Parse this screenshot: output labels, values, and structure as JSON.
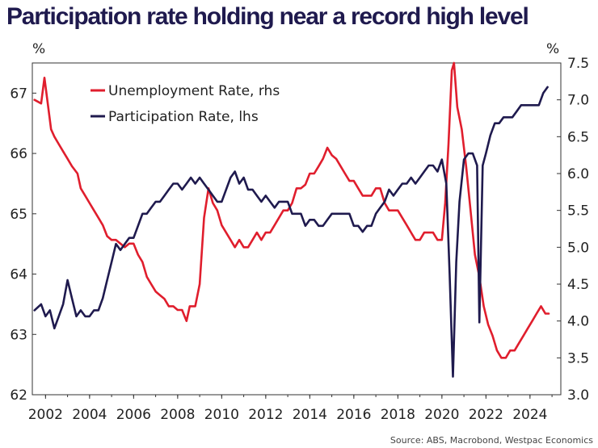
{
  "chart_data": {
    "type": "line",
    "title": "Participation rate holding near a record high level",
    "left_unit": "%",
    "right_unit": "%",
    "ylim_left": [
      62,
      67.5
    ],
    "ylim_right": [
      3.0,
      7.5
    ],
    "yticks_left": [
      "62",
      "63",
      "64",
      "65",
      "66",
      "67"
    ],
    "yticks_right": [
      "3.0",
      "3.5",
      "4.0",
      "4.5",
      "5.0",
      "5.5",
      "6.0",
      "6.5",
      "7.0",
      "7.5"
    ],
    "xlim": [
      2001.4,
      2025.4
    ],
    "xticks": [
      "2002",
      "2004",
      "2006",
      "2008",
      "2010",
      "2012",
      "2014",
      "2016",
      "2018",
      "2020",
      "2022",
      "2024"
    ],
    "legend": [
      {
        "label": "Unemployment Rate, rhs",
        "color": "#e01e2d"
      },
      {
        "label": "Participation Rate, lhs",
        "color": "#1f1a4e"
      }
    ],
    "source": "Source: ABS, Macrobond, Westpac Economics",
    "series": [
      {
        "name": "Unemployment Rate, rhs",
        "axis": "right",
        "color": "#e01e2d",
        "x": [
          2001.5,
          2001.8,
          2001.95,
          2002.1,
          2002.25,
          2002.4,
          2002.6,
          2002.8,
          2003.0,
          2003.2,
          2003.45,
          2003.6,
          2003.8,
          2004.0,
          2004.2,
          2004.4,
          2004.6,
          2004.8,
          2005.0,
          2005.2,
          2005.4,
          2005.6,
          2005.8,
          2006.0,
          2006.2,
          2006.4,
          2006.6,
          2006.8,
          2007.0,
          2007.2,
          2007.4,
          2007.6,
          2007.8,
          2008.0,
          2008.2,
          2008.4,
          2008.55,
          2008.8,
          2009.0,
          2009.2,
          2009.4,
          2009.6,
          2009.8,
          2010.0,
          2010.2,
          2010.4,
          2010.6,
          2010.8,
          2011.0,
          2011.2,
          2011.4,
          2011.6,
          2011.8,
          2012.0,
          2012.2,
          2012.4,
          2012.6,
          2012.8,
          2013.0,
          2013.2,
          2013.4,
          2013.6,
          2013.8,
          2014.0,
          2014.2,
          2014.4,
          2014.6,
          2014.8,
          2015.0,
          2015.2,
          2015.4,
          2015.6,
          2015.8,
          2016.0,
          2016.2,
          2016.4,
          2016.6,
          2016.8,
          2017.0,
          2017.2,
          2017.4,
          2017.6,
          2017.8,
          2018.0,
          2018.2,
          2018.4,
          2018.6,
          2018.8,
          2019.0,
          2019.2,
          2019.4,
          2019.6,
          2019.8,
          2020.0,
          2020.15,
          2020.3,
          2020.45,
          2020.55,
          2020.7,
          2020.9,
          2021.1,
          2021.3,
          2021.5,
          2021.7,
          2021.9,
          2022.1,
          2022.3,
          2022.5,
          2022.7,
          2022.9,
          2023.1,
          2023.3,
          2023.5,
          2023.7,
          2023.9,
          2024.1,
          2024.3,
          2024.5,
          2024.7,
          2024.85
        ],
        "values": [
          7.0,
          6.95,
          7.3,
          6.95,
          6.6,
          6.5,
          6.4,
          6.3,
          6.2,
          6.1,
          6.0,
          5.8,
          5.7,
          5.6,
          5.5,
          5.4,
          5.3,
          5.15,
          5.1,
          5.1,
          5.05,
          5.0,
          5.05,
          5.05,
          4.9,
          4.8,
          4.6,
          4.5,
          4.4,
          4.35,
          4.3,
          4.2,
          4.2,
          4.15,
          4.15,
          4.0,
          4.2,
          4.2,
          4.5,
          5.4,
          5.8,
          5.6,
          5.5,
          5.3,
          5.2,
          5.1,
          5.0,
          5.1,
          5.0,
          5.0,
          5.1,
          5.2,
          5.1,
          5.2,
          5.2,
          5.3,
          5.4,
          5.5,
          5.5,
          5.6,
          5.8,
          5.8,
          5.85,
          6.0,
          6.0,
          6.1,
          6.2,
          6.35,
          6.25,
          6.2,
          6.1,
          6.0,
          5.9,
          5.9,
          5.8,
          5.7,
          5.7,
          5.7,
          5.8,
          5.8,
          5.6,
          5.5,
          5.5,
          5.5,
          5.4,
          5.3,
          5.2,
          5.1,
          5.1,
          5.2,
          5.2,
          5.2,
          5.1,
          5.1,
          5.6,
          6.4,
          7.4,
          7.5,
          6.9,
          6.6,
          6.1,
          5.5,
          4.9,
          4.6,
          4.2,
          3.95,
          3.8,
          3.6,
          3.5,
          3.5,
          3.6,
          3.6,
          3.7,
          3.8,
          3.9,
          4.0,
          4.1,
          4.2,
          4.1,
          4.1
        ]
      },
      {
        "name": "Participation Rate, lhs",
        "axis": "left",
        "color": "#1f1a4e",
        "x": [
          2001.5,
          2001.8,
          2002.0,
          2002.2,
          2002.4,
          2002.6,
          2002.8,
          2003.0,
          2003.2,
          2003.4,
          2003.6,
          2003.8,
          2004.0,
          2004.2,
          2004.4,
          2004.6,
          2004.8,
          2005.0,
          2005.2,
          2005.4,
          2005.6,
          2005.8,
          2006.0,
          2006.2,
          2006.4,
          2006.6,
          2006.8,
          2007.0,
          2007.2,
          2007.4,
          2007.6,
          2007.8,
          2008.0,
          2008.2,
          2008.4,
          2008.6,
          2008.8,
          2009.0,
          2009.2,
          2009.4,
          2009.6,
          2009.8,
          2010.0,
          2010.2,
          2010.4,
          2010.6,
          2010.8,
          2011.0,
          2011.2,
          2011.4,
          2011.6,
          2011.8,
          2012.0,
          2012.2,
          2012.4,
          2012.6,
          2012.8,
          2013.0,
          2013.2,
          2013.4,
          2013.6,
          2013.8,
          2014.0,
          2014.2,
          2014.4,
          2014.6,
          2014.8,
          2015.0,
          2015.2,
          2015.4,
          2015.6,
          2015.8,
          2016.0,
          2016.2,
          2016.4,
          2016.6,
          2016.8,
          2017.0,
          2017.2,
          2017.4,
          2017.6,
          2017.8,
          2018.0,
          2018.2,
          2018.4,
          2018.6,
          2018.8,
          2019.0,
          2019.2,
          2019.4,
          2019.6,
          2019.8,
          2020.0,
          2020.2,
          2020.35,
          2020.5,
          2020.65,
          2020.8,
          2021.0,
          2021.2,
          2021.4,
          2021.6,
          2021.7,
          2021.85,
          2022.0,
          2022.2,
          2022.4,
          2022.6,
          2022.8,
          2023.0,
          2023.2,
          2023.4,
          2023.6,
          2023.8,
          2024.0,
          2024.2,
          2024.4,
          2024.6,
          2024.8
        ],
        "values": [
          63.4,
          63.5,
          63.3,
          63.4,
          63.1,
          63.3,
          63.5,
          63.9,
          63.6,
          63.3,
          63.4,
          63.3,
          63.3,
          63.4,
          63.4,
          63.6,
          63.9,
          64.2,
          64.5,
          64.4,
          64.5,
          64.6,
          64.6,
          64.8,
          65.0,
          65.0,
          65.1,
          65.2,
          65.2,
          65.3,
          65.4,
          65.5,
          65.5,
          65.4,
          65.5,
          65.6,
          65.5,
          65.6,
          65.5,
          65.4,
          65.3,
          65.2,
          65.2,
          65.4,
          65.6,
          65.7,
          65.5,
          65.6,
          65.4,
          65.4,
          65.3,
          65.2,
          65.3,
          65.2,
          65.1,
          65.2,
          65.2,
          65.2,
          65.0,
          65.0,
          65.0,
          64.8,
          64.9,
          64.9,
          64.8,
          64.8,
          64.9,
          65.0,
          65.0,
          65.0,
          65.0,
          65.0,
          64.8,
          64.8,
          64.7,
          64.8,
          64.8,
          65.0,
          65.1,
          65.2,
          65.4,
          65.3,
          65.4,
          65.5,
          65.5,
          65.6,
          65.5,
          65.6,
          65.7,
          65.8,
          65.8,
          65.7,
          65.9,
          65.5,
          64.0,
          62.3,
          64.2,
          65.2,
          65.9,
          66.0,
          66.0,
          65.8,
          63.2,
          65.8,
          66.0,
          66.3,
          66.5,
          66.5,
          66.6,
          66.6,
          66.6,
          66.7,
          66.8,
          66.8,
          66.8,
          66.8,
          66.8,
          67.0,
          67.1
        ]
      }
    ]
  }
}
